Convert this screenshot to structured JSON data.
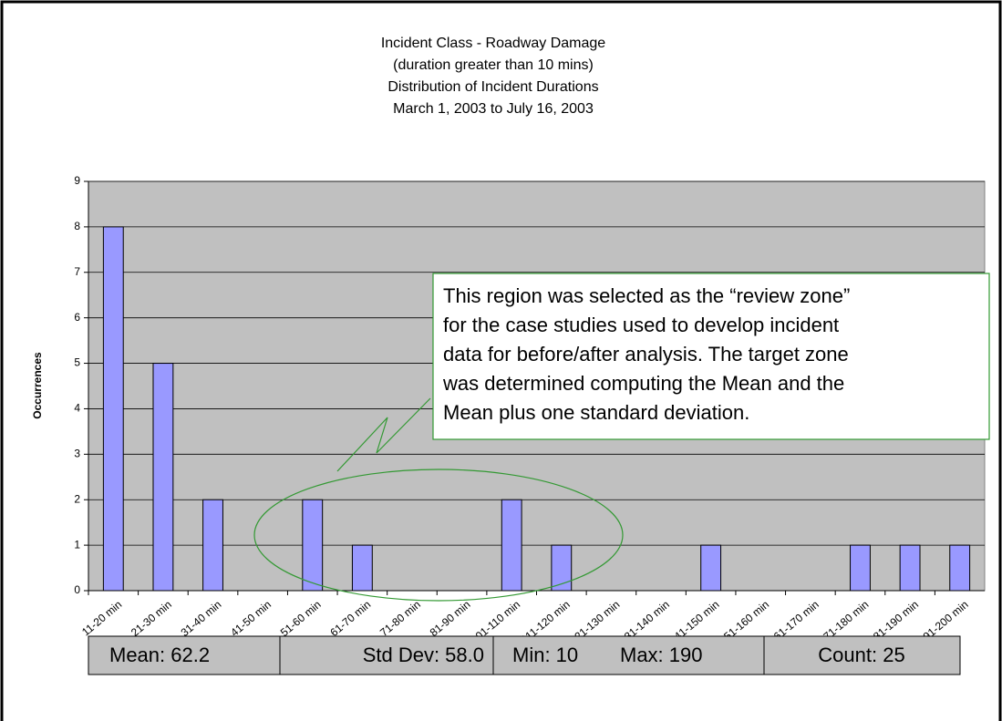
{
  "chart_data": {
    "type": "bar",
    "title": [
      "Incident Class - Roadway Damage",
      "(duration greater than 10 mins)",
      "Distribution of Incident Durations",
      "March 1, 2003 to July 16, 2003"
    ],
    "y_label": "Occurrences",
    "categories": [
      "11-20 min",
      "21-30 min",
      "31-40 min",
      "41-50 min",
      "51-60 min",
      "61-70 min",
      "71-80 min",
      "81-90 min",
      "101-110 min",
      "111-120 min",
      "121-130 min",
      "131-140 min",
      "141-150 min",
      "151-160 min",
      "161-170 min",
      "171-180 min",
      "181-190 min",
      "191-200 min"
    ],
    "values": [
      8,
      5,
      2,
      0,
      2,
      1,
      0,
      0,
      2,
      1,
      0,
      0,
      1,
      0,
      0,
      1,
      1,
      1
    ],
    "color": "#9999ff",
    "ylim": [
      0,
      9
    ],
    "yticks": [
      0,
      1,
      2,
      3,
      4,
      5,
      6,
      7,
      8,
      9
    ],
    "grid": true,
    "annotation": [
      "This region was selected as the “review zone”",
      "for the case studies used to develop incident",
      "data for before/after analysis. The target zone",
      "was determined computing the Mean and the",
      "Mean plus one standard deviation."
    ],
    "stats": [
      "Mean: 62.2",
      "Std Dev: 58.0",
      "Min: 10",
      "Max: 190",
      "Count: 25"
    ]
  }
}
